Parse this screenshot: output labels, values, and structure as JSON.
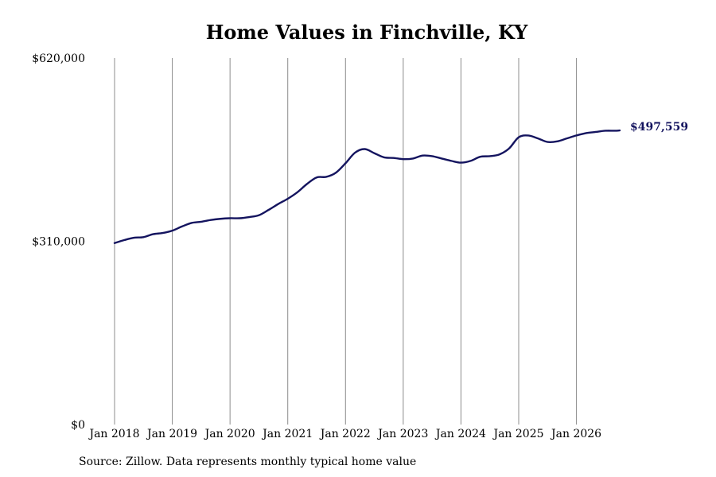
{
  "chart_data": {
    "type": "line",
    "title": "Home Values in Finchville, KY",
    "xlabel": "",
    "ylabel": "",
    "ylim": [
      0,
      620000
    ],
    "yticks": [
      0,
      310000,
      620000
    ],
    "ytick_labels": [
      "$0",
      "$310,000",
      "$620,000"
    ],
    "xlim": [
      "2018-01",
      "2026-10"
    ],
    "xtick_labels": [
      "Jan 2018",
      "Jan 2019",
      "Jan 2020",
      "Jan 2021",
      "Jan 2022",
      "Jan 2023",
      "Jan 2024",
      "Jan 2025",
      "Jan 2026"
    ],
    "grid": "vertical",
    "line_color": "#14145f",
    "grid_color": "#8c8c8c",
    "end_label": "$497,559",
    "series": [
      {
        "x": [
          "2018-01",
          "2018-03",
          "2018-05",
          "2018-07",
          "2018-09",
          "2018-11",
          "2019-01",
          "2019-03",
          "2019-05",
          "2019-07",
          "2019-09",
          "2019-11",
          "2020-01",
          "2020-03",
          "2020-05",
          "2020-07",
          "2020-09",
          "2020-11",
          "2021-01",
          "2021-03",
          "2021-05",
          "2021-07",
          "2021-09",
          "2021-11",
          "2022-01",
          "2022-03",
          "2022-05",
          "2022-07",
          "2022-09",
          "2022-11",
          "2023-01",
          "2023-03",
          "2023-05",
          "2023-07",
          "2023-09",
          "2023-11",
          "2024-01",
          "2024-03",
          "2024-05",
          "2024-07",
          "2024-09",
          "2024-11",
          "2025-01",
          "2025-03",
          "2025-05",
          "2025-07",
          "2025-09",
          "2025-11",
          "2026-01",
          "2026-03",
          "2026-05",
          "2026-07",
          "2026-09",
          "2026-10"
        ],
        "y": [
          307000,
          312000,
          316000,
          317000,
          322000,
          324000,
          328000,
          335000,
          341000,
          343000,
          346000,
          348000,
          349000,
          349000,
          351000,
          354000,
          363000,
          373000,
          382000,
          393000,
          407000,
          418000,
          419000,
          426000,
          442000,
          460000,
          466000,
          459000,
          452000,
          451000,
          449000,
          450000,
          455000,
          454000,
          450000,
          446000,
          443000,
          446000,
          453000,
          454000,
          457000,
          467000,
          486000,
          489000,
          484000,
          478000,
          479000,
          484000,
          489000,
          493000,
          495000,
          497000,
          497000,
          497559
        ]
      }
    ]
  },
  "source": "Source: Zillow. Data represents monthly typical home value"
}
